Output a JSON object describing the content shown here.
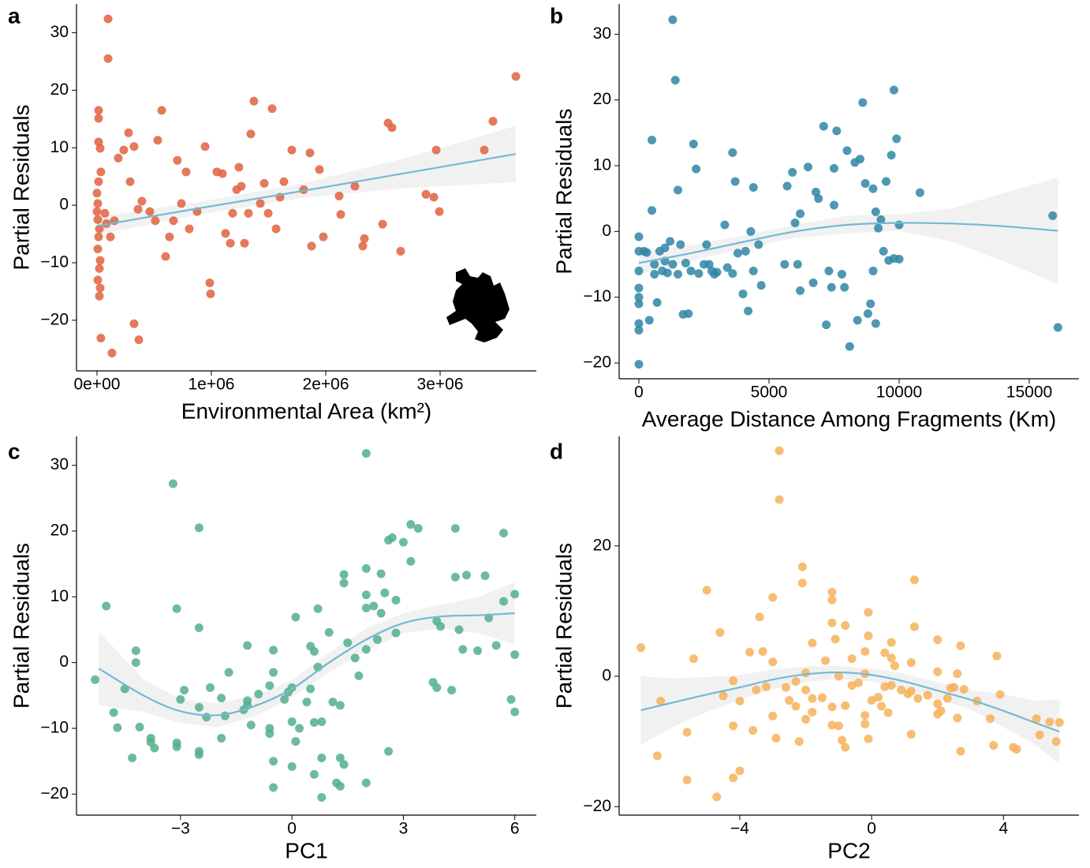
{
  "chart_data": [
    {
      "type": "scatter",
      "panel": "a",
      "xlabel": "Environmental Area (km²)",
      "ylabel": "Partial Residuals",
      "color": "#e0623f",
      "xlim": [
        -179000,
        3841000
      ],
      "ylim": [
        -28.8,
        35.0
      ],
      "xticks": [
        {
          "value": 0,
          "label": "0e+00"
        },
        {
          "value": 1000000,
          "label": "1e+06"
        },
        {
          "value": 2000000,
          "label": "2e+06"
        },
        {
          "value": 3000000,
          "label": "3e+06"
        }
      ],
      "yticks": [
        {
          "value": -20,
          "label": "−20"
        },
        {
          "value": -10,
          "label": "−10"
        },
        0,
        10,
        20,
        30
      ],
      "x": [
        97000,
        97000,
        14000,
        14000,
        14000,
        28000,
        34000,
        14000,
        0,
        7000,
        0,
        7000,
        21000,
        14000,
        7000,
        28000,
        21000,
        7000,
        28000,
        21000,
        34000,
        131000,
        366000,
        324000,
        69000,
        83000,
        117000,
        152000,
        186000,
        234000,
        276000,
        290000,
        324000,
        359000,
        393000,
        462000,
        510000,
        531000,
        566000,
        600000,
        634000,
        669000,
        703000,
        738000,
        779000,
        807000,
        876000,
        945000,
        986000,
        993000,
        1048000,
        1097000,
        1124000,
        1166000,
        1186000,
        1221000,
        1241000,
        1262000,
        1290000,
        1324000,
        1345000,
        1372000,
        1428000,
        1462000,
        1497000,
        1531000,
        1566000,
        1600000,
        1634000,
        1703000,
        1807000,
        1862000,
        1876000,
        1945000,
        1979000,
        2117000,
        2131000,
        2255000,
        2324000,
        2338000,
        2497000,
        2545000,
        2579000,
        2655000,
        2876000,
        2945000,
        2966000,
        2993000,
        3386000,
        3462000,
        3662000
      ],
      "values": [
        32.4,
        25.5,
        16.5,
        15.1,
        11.0,
        9.9,
        5.8,
        4.1,
        2.1,
        0.3,
        -1.1,
        -2.5,
        -4.1,
        -5.5,
        -7.6,
        -9.6,
        -11.0,
        -13.0,
        -14.4,
        -15.8,
        -23.1,
        -25.7,
        -23.4,
        -20.6,
        -1.4,
        -3.2,
        -5.5,
        -2.7,
        8.2,
        9.6,
        12.6,
        4.1,
        10.2,
        -0.7,
        0.7,
        -1.1,
        -2.7,
        11.3,
        16.5,
        -8.9,
        -5.5,
        -2.7,
        7.8,
        0.3,
        5.8,
        -4.1,
        -1.1,
        10.2,
        -13.5,
        -15.4,
        5.8,
        5.5,
        -4.9,
        -6.6,
        -1.4,
        2.7,
        6.6,
        3.3,
        -6.6,
        -1.4,
        12.4,
        18.1,
        0.3,
        3.8,
        -1.4,
        16.8,
        -4.1,
        1.4,
        4.1,
        9.6,
        2.7,
        9.1,
        -7.1,
        6.2,
        -5.5,
        1.6,
        -1.6,
        3.3,
        -7.1,
        -5.8,
        -3.3,
        14.3,
        13.5,
        -8.0,
        1.9,
        1.4,
        9.6,
        -1.1,
        9.6,
        14.6,
        22.4
      ],
      "fit": {
        "color": "#74b9d4",
        "band_color": "#ebebeb",
        "x": [
          0,
          900000,
          1800000,
          2700000,
          3660000
        ],
        "values": [
          -3.6,
          -0.5,
          2.5,
          5.6,
          8.9
        ],
        "lower": [
          -5.2,
          -1.6,
          1.3,
          3.0,
          4.0
        ],
        "upper": [
          -2.0,
          0.6,
          3.8,
          8.2,
          13.8
        ]
      }
    },
    {
      "type": "scatter",
      "panel": "b",
      "xlabel": "Average Distance Among Fragments (Km)",
      "ylabel": "Partial Residuals",
      "color": "#2f86a6",
      "xlim": [
        -758,
        16909
      ],
      "ylim": [
        -22.4,
        34.6
      ],
      "xticks": [
        0,
        5000,
        10000,
        15000
      ],
      "yticks": [
        {
          "value": -20,
          "label": "−20"
        },
        {
          "value": -10,
          "label": "−10"
        },
        0,
        10,
        20,
        30
      ],
      "x": [
        0,
        0,
        0,
        0,
        0,
        0,
        0,
        0,
        0,
        200,
        300,
        400,
        500,
        500,
        600,
        600,
        700,
        800,
        900,
        1000,
        1000,
        1100,
        1200,
        1300,
        1300,
        1400,
        1500,
        1500,
        1600,
        1700,
        1800,
        1900,
        2000,
        2100,
        2200,
        2300,
        2500,
        2600,
        2700,
        2800,
        2900,
        3000,
        3300,
        3400,
        3600,
        3600,
        3700,
        3800,
        4000,
        4100,
        4200,
        4300,
        4400,
        4400,
        4600,
        4700,
        5600,
        5700,
        5900,
        6000,
        6100,
        6200,
        6200,
        6500,
        6700,
        6800,
        6900,
        7100,
        7200,
        7300,
        7400,
        7500,
        7500,
        7600,
        7800,
        7900,
        8000,
        8100,
        8300,
        8400,
        8500,
        8600,
        8700,
        8800,
        8900,
        9000,
        9000,
        9100,
        9100,
        9200,
        9300,
        9400,
        9500,
        9600,
        9700,
        9800,
        9900,
        10000,
        9800,
        10000,
        10800,
        15900,
        16100
      ],
      "values": [
        -20.2,
        -15,
        -14,
        -11,
        -10,
        -8.6,
        -6,
        -3,
        -0.8,
        -3,
        -3.2,
        -13.5,
        3.2,
        13.9,
        -5,
        -6.5,
        -10.8,
        -3,
        -6,
        -4.5,
        -2.5,
        -6.3,
        -1.5,
        -5,
        32.2,
        23,
        6.3,
        -6.5,
        -2,
        -12.6,
        -4.8,
        -12.5,
        -6,
        13.3,
        9.5,
        -6.4,
        -5,
        -2,
        -5,
        -6,
        -6.5,
        -6.2,
        1,
        -5.5,
        -6.4,
        12,
        7.6,
        -3.3,
        -9.5,
        -3,
        -12.1,
        0,
        6.7,
        -6,
        -2,
        -8.2,
        -5,
        6.9,
        9,
        1.3,
        -5,
        -9,
        2.7,
        9.8,
        -7.8,
        6,
        5,
        16,
        -14.2,
        -6,
        -8.5,
        4,
        9.6,
        15.3,
        -6.5,
        -8.5,
        12.3,
        -17.5,
        10.5,
        -13.5,
        11,
        19.6,
        7.3,
        -12.5,
        -11,
        6.5,
        -6,
        -14,
        3,
        0.5,
        1.8,
        -3,
        7.6,
        -4.4,
        11.6,
        21.5,
        14.1,
        -4.2,
        -4.1,
        1,
        5.9,
        2.4,
        -14.6
      ],
      "fit": {
        "color": "#74b9d4",
        "band_color": "#ebebeb",
        "x": [
          0,
          2000,
          4000,
          6000,
          8000,
          10000,
          12000,
          14000,
          16100
        ],
        "values": [
          -4.8,
          -3.3,
          -1.6,
          0,
          1,
          1.3,
          1.2,
          0.8,
          0.1
        ],
        "lower": [
          -6.5,
          -4.5,
          -2.6,
          -1,
          -0.3,
          0.1,
          -1.5,
          -4.5,
          -8
        ],
        "upper": [
          -3.1,
          -2.1,
          -0.6,
          1,
          2.4,
          2.6,
          3.5,
          5.8,
          8.2
        ]
      }
    },
    {
      "type": "scatter",
      "panel": "c",
      "xlabel": "PC1",
      "ylabel": "Partial Residuals",
      "color": "#52b08b",
      "xlim": [
        -5.8,
        6.58
      ],
      "ylim": [
        -23.2,
        34.4
      ],
      "xticks": [
        {
          "value": -3,
          "label": "−3"
        },
        0,
        3,
        6
      ],
      "yticks": [
        {
          "value": -20,
          "label": "−20"
        },
        {
          "value": -10,
          "label": "−10"
        },
        0,
        10,
        20,
        30
      ],
      "x": [
        -5.3,
        -5.0,
        -4.8,
        -4.7,
        -4.5,
        -4.3,
        -4.2,
        -4.2,
        -4.1,
        -3.8,
        -3.8,
        -3.7,
        -3.2,
        -3.1,
        -3.1,
        -3.1,
        -3,
        -2.9,
        -2.5,
        -2.5,
        -2.5,
        -2.5,
        -2.5,
        -2.3,
        -2.2,
        -1.9,
        -1.9,
        -1.8,
        -1.7,
        -1.3,
        -1.2,
        -1.2,
        -1.2,
        -1.1,
        -0.9,
        -0.6,
        -0.6,
        -0.6,
        -0.5,
        -0.5,
        -0.5,
        -0.5,
        -0.2,
        -0.1,
        0,
        0,
        0,
        0.1,
        0.1,
        0.2,
        0.4,
        0.5,
        0.5,
        0.6,
        0.6,
        0.6,
        0.7,
        0.7,
        0.8,
        0.8,
        0.8,
        1,
        1.1,
        1.2,
        1.3,
        1.3,
        1.3,
        1.4,
        1.4,
        1.4,
        1.5,
        1.7,
        1.8,
        2,
        2,
        2,
        2,
        2,
        2,
        2.2,
        2.3,
        2.4,
        2.4,
        2.5,
        2.6,
        2.6,
        2.7,
        2.8,
        2.8,
        3.0,
        3.2,
        3.2,
        3.4,
        3.8,
        3.9,
        3.9,
        4.0,
        4.3,
        4.4,
        4.4,
        4.5,
        4.6,
        4.7,
        5,
        5.2,
        5.3,
        5.5,
        5.7,
        5.7,
        5.9,
        6,
        6,
        6
      ],
      "values": [
        -2.6,
        8.6,
        -7.6,
        -9.9,
        -4,
        -14.5,
        1.8,
        0,
        -9.8,
        -11.5,
        -12.1,
        -13,
        27.2,
        8.2,
        -12.2,
        -12.8,
        -5.6,
        -4.2,
        20.5,
        5.3,
        -6.8,
        -13.5,
        -14,
        -8.3,
        -3.8,
        -5.4,
        -11.5,
        -8.1,
        -1.5,
        -7.2,
        2.6,
        -5.8,
        -6.5,
        -9.5,
        -4.8,
        -3.5,
        -10,
        -10.8,
        -15,
        -19,
        1.9,
        -1.5,
        -5.6,
        -4.5,
        -3.8,
        -9,
        -15.8,
        6.9,
        -12,
        -10,
        -6,
        -4,
        2.5,
        1.7,
        -9.1,
        -17,
        -0.7,
        8.2,
        -9,
        -14.5,
        -20.5,
        4.6,
        -6,
        -18.3,
        -14.5,
        -18.8,
        -6.5,
        13.4,
        12.1,
        -15.5,
        3,
        0.7,
        -2,
        2,
        8.3,
        10.3,
        14.3,
        -18.3,
        31.8,
        8.6,
        3.5,
        13.5,
        7.5,
        10.6,
        18.6,
        -13.5,
        19,
        9.5,
        4.5,
        18.3,
        21,
        15.4,
        20.4,
        -3,
        -3.8,
        6.3,
        5.5,
        -4.2,
        20.4,
        13,
        5,
        2,
        13.3,
        1.8,
        13.2,
        6.8,
        2.6,
        19.7,
        9.3,
        -5.6,
        -7.5,
        10.4,
        1.2
      ],
      "fit": {
        "color": "#74b9d4",
        "band_color": "#ebebeb",
        "x": [
          -5.2,
          -4,
          -3,
          -2,
          -1,
          0,
          1,
          2,
          3,
          4,
          5,
          6
        ],
        "values": [
          -0.9,
          -5,
          -7.4,
          -8,
          -6.6,
          -4,
          0,
          3.5,
          6,
          7,
          7.2,
          7.5
        ],
        "lower": [
          -6.5,
          -7.5,
          -9.2,
          -9.8,
          -8.2,
          -5.3,
          -1.5,
          1.8,
          4.5,
          5.2,
          4.5,
          2.8
        ],
        "upper": [
          4.7,
          -2.5,
          -5.6,
          -6.2,
          -5,
          -2.7,
          1.5,
          5.2,
          7.5,
          8.8,
          9.9,
          12.2
        ]
      }
    },
    {
      "type": "scatter",
      "panel": "d",
      "xlabel": "PC2",
      "ylabel": "Partial Residuals",
      "color": "#f5b15a",
      "xlim": [
        -7.66,
        6.29
      ],
      "ylim": [
        -21.3,
        36.8
      ],
      "xticks": [
        {
          "value": -4,
          "label": "−4"
        },
        0,
        4
      ],
      "yticks": [
        {
          "value": -20,
          "label": "−20"
        },
        0,
        20
      ],
      "x": [
        -7.0,
        -6.5,
        -6.4,
        -5.6,
        -5.6,
        -5.4,
        -5.0,
        -4.7,
        -4.6,
        -4.5,
        -4.2,
        -4.2,
        -4.2,
        -4.0,
        -4,
        -3.7,
        -3.6,
        -3.5,
        -3.4,
        -3.3,
        -3.2,
        -3,
        -3,
        -3,
        -2.9,
        -2.8,
        -2.8,
        -2.6,
        -2.5,
        -2.3,
        -2.3,
        -2.2,
        -2,
        -2,
        -1.8,
        -1.8,
        -1.8,
        -2.1,
        -2.1,
        -2,
        -1.5,
        -1.4,
        -1.2,
        -1.2,
        -1.2,
        -1.2,
        -1.2,
        -1.1,
        -1.0,
        -1.0,
        -0.9,
        -0.8,
        -0.8,
        -0.8,
        -0.6,
        -0.6,
        -0.4,
        -0.2,
        -0.2,
        -0.1,
        -0.2,
        -0.2,
        -0.1,
        -0.1,
        0,
        0.2,
        0.3,
        0.4,
        0.4,
        0.5,
        0.6,
        0.6,
        0.6,
        0.7,
        0.9,
        1.1,
        1.2,
        1.2,
        1.2,
        1.3,
        1.3,
        1.4,
        1.7,
        2.0,
        2.0,
        2.0,
        2.0,
        2.1,
        2.3,
        2.4,
        2.5,
        2.6,
        2.7,
        2.6,
        2.7,
        2.8,
        3.2,
        3.6,
        3.7,
        3.8,
        3.9,
        4.3,
        4.4,
        5,
        5.1,
        5.4,
        5.6,
        5.7
      ],
      "values": [
        4.4,
        -12.2,
        -3.8,
        -15.9,
        -8.6,
        2.7,
        13.2,
        -18.5,
        6.7,
        -3,
        -0.7,
        -7.6,
        -15.6,
        -14.5,
        -3.8,
        3.7,
        -8.3,
        -2.1,
        9.1,
        3.8,
        -1.6,
        12.1,
        2.2,
        -6.1,
        -9.5,
        34.6,
        27.1,
        -1.7,
        -3.7,
        -0.8,
        -4.6,
        -10,
        -2.1,
        0.5,
        5.1,
        -3.4,
        -5.5,
        14.3,
        16.8,
        -6.6,
        -3.3,
        2.4,
        -4.7,
        -7.5,
        11.7,
        12.9,
        8.2,
        5.7,
        0,
        -7.6,
        -9.8,
        -4.5,
        7.8,
        -10.9,
        2.7,
        -1.4,
        -1,
        -6,
        -7.3,
        -9.6,
        3.8,
        0.4,
        6.2,
        9.8,
        -3.7,
        -3.2,
        -4.6,
        3.6,
        -1.6,
        -5.6,
        -1.4,
        2.8,
        5.2,
        1.6,
        -2.1,
        -2.7,
        -2.3,
        -8.9,
        2.1,
        14.8,
        7.6,
        -3.4,
        -2.9,
        5.6,
        0.7,
        -4.2,
        -5.8,
        -5.3,
        -3.4,
        -1.8,
        -1.7,
        0.4,
        -11.5,
        -6.4,
        4.7,
        -2,
        -3.8,
        -6.5,
        -10.6,
        3.1,
        -2.8,
        -10.9,
        -11.2,
        -6.5,
        -9,
        -7,
        -10,
        -7.1
      ],
      "fit": {
        "color": "#74b9d4",
        "band_color": "#ebebeb",
        "x": [
          -7,
          -6,
          -5,
          -4,
          -3,
          -2,
          -1,
          0,
          1,
          2,
          3,
          4,
          5,
          5.7
        ],
        "values": [
          -5.2,
          -4,
          -2.8,
          -1.7,
          -0.5,
          0.3,
          0.6,
          0.2,
          -0.8,
          -2.2,
          -3.6,
          -5.3,
          -7.2,
          -8.5
        ],
        "lower": [
          -10.5,
          -7.7,
          -5.5,
          -3.6,
          -2,
          -0.9,
          -0.4,
          -0.8,
          -2,
          -3.5,
          -5.1,
          -7.8,
          -10.6,
          -13.5
        ],
        "upper": [
          0,
          -0.3,
          -0.1,
          0.2,
          1,
          1.5,
          1.6,
          1.2,
          0.4,
          -0.9,
          -2.1,
          -2.8,
          -3.8,
          -3.5
        ]
      }
    }
  ]
}
